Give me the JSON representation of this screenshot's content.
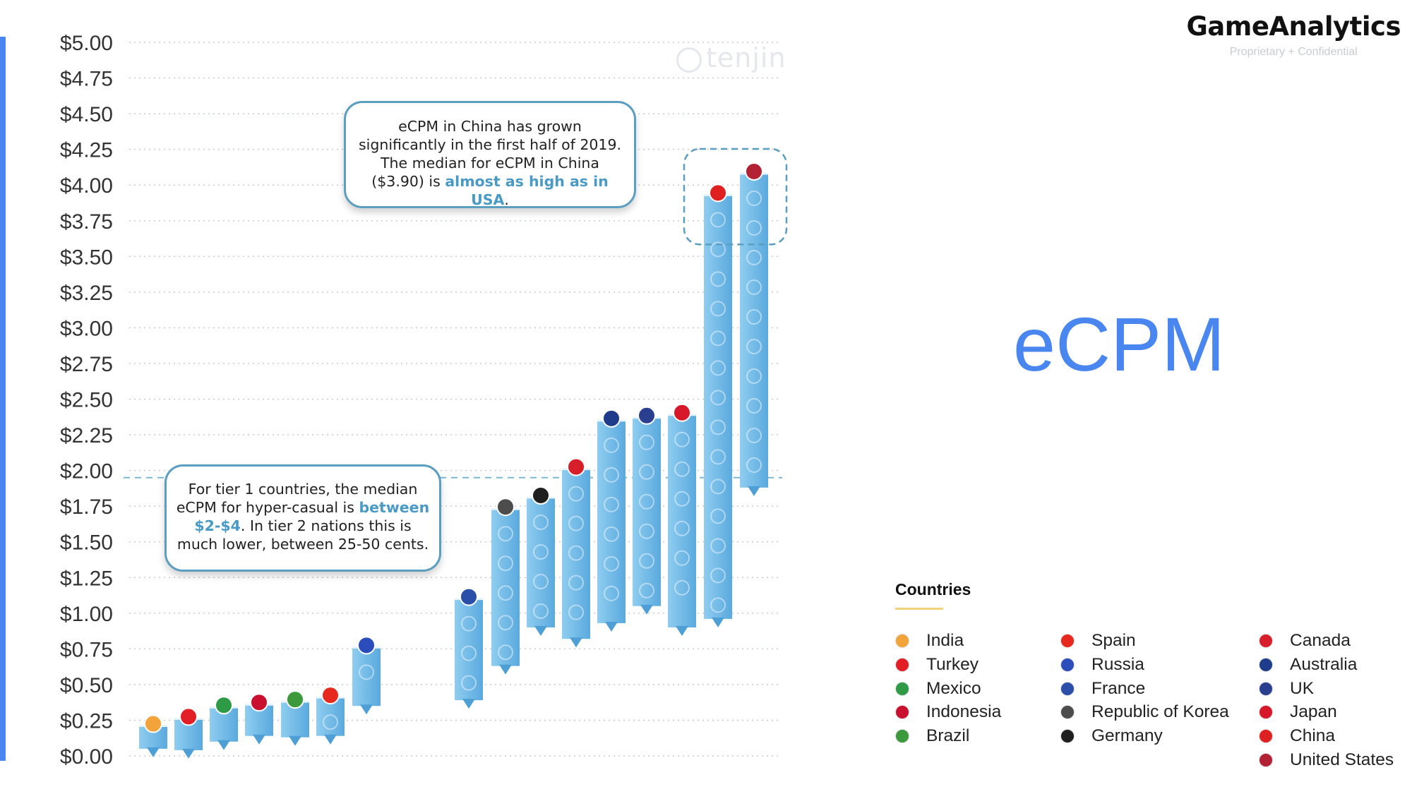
{
  "brand": {
    "name": "GameAnalytics",
    "tagline": "Proprietary + Confidential"
  },
  "slide_title": "eCPM",
  "watermark": "tenjin",
  "callouts": {
    "china": {
      "line1": "eCPM in China has grown",
      "line2": "significantly in the first half of 2019.",
      "line3": "The median for eCPM in China",
      "line4_prefix": "($3.90) is ",
      "line4_highlight": "almost as high as in USA",
      "line4_suffix": "."
    },
    "tier": {
      "line1": "For tier 1 countries, the median",
      "line2_prefix": "eCPM for hyper-casual is ",
      "line2_highlight": "between",
      "line3_highlight": "$2-$4",
      "line3_suffix": ". In tier 2 nations this is",
      "line4": "much lower, between 25-50 cents."
    }
  },
  "legend": {
    "title": "Countries",
    "items": [
      {
        "label": "India",
        "color": "#f2a33a"
      },
      {
        "label": "Turkey",
        "color": "#e21f26"
      },
      {
        "label": "Mexico",
        "color": "#2e9a46"
      },
      {
        "label": "Indonesia",
        "color": "#c9102f"
      },
      {
        "label": "Brazil",
        "color": "#3c9a3c"
      },
      {
        "label": "Spain",
        "color": "#e6281e"
      },
      {
        "label": "Russia",
        "color": "#2a4dbb"
      },
      {
        "label": "France",
        "color": "#2b4fa8"
      },
      {
        "label": "Republic of Korea",
        "color": "#4d4d4d"
      },
      {
        "label": "Germany",
        "color": "#1f1f1f"
      },
      {
        "label": "Canada",
        "color": "#d71f2b"
      },
      {
        "label": "Australia",
        "color": "#1f3c8c"
      },
      {
        "label": "UK",
        "color": "#2a3f8f"
      },
      {
        "label": "Japan",
        "color": "#d7182a"
      },
      {
        "label": "China",
        "color": "#df2020"
      },
      {
        "label": "United States",
        "color": "#b22234"
      }
    ]
  },
  "chart_data": {
    "type": "bar",
    "yunit": "$",
    "ylim": [
      0,
      5
    ],
    "yticks": [
      "$0.00",
      "$0.25",
      "$0.50",
      "$0.75",
      "$1.00",
      "$1.25",
      "$1.50",
      "$1.75",
      "$2.00",
      "$2.25",
      "$2.50",
      "$2.75",
      "$3.00",
      "$3.25",
      "$3.50",
      "$3.75",
      "$4.00",
      "$4.25",
      "$4.50",
      "$4.75",
      "$5.00"
    ],
    "grid": true,
    "reference_line": 1.95,
    "highlight": [
      "China",
      "United States"
    ],
    "bar_color": "#6db8e6",
    "categories": [
      "India",
      "Turkey",
      "Mexico",
      "Indonesia",
      "Brazil",
      "Spain",
      "Russia",
      "France",
      "Republic of Korea",
      "Germany",
      "Canada",
      "Australia",
      "UK",
      "Japan",
      "China",
      "United States"
    ],
    "series": [
      {
        "name": "low",
        "values": [
          0.05,
          0.04,
          0.1,
          0.14,
          0.13,
          0.14,
          0.35,
          0.39,
          0.63,
          0.9,
          0.82,
          0.93,
          1.05,
          0.9,
          0.96,
          1.88
        ]
      },
      {
        "name": "high",
        "values": [
          0.21,
          0.26,
          0.34,
          0.36,
          0.38,
          0.41,
          0.76,
          1.1,
          1.73,
          1.81,
          2.01,
          2.35,
          2.37,
          2.39,
          3.93,
          4.08
        ]
      }
    ]
  }
}
